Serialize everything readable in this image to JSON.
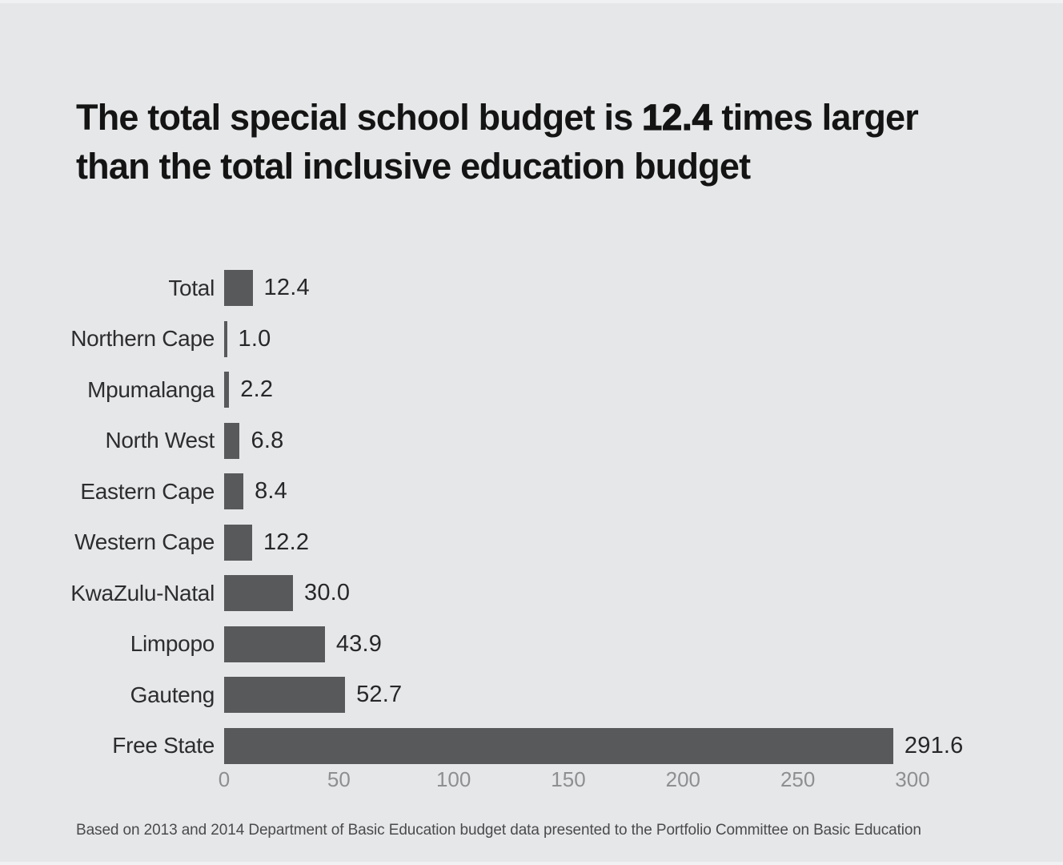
{
  "title": {
    "line1_prefix": "The total special school budget is ",
    "highlight": "12.4",
    "line1_suffix": " times larger",
    "line2": "than the total inclusive education budget"
  },
  "source_note": "Based on 2013 and 2014 Department of Basic Education budget data presented to the Portfolio Committee on Basic Education",
  "colors": {
    "background": "#e6e7e8",
    "bar": "#58595b",
    "title_text": "#141414",
    "tick_text": "#8d8f92"
  },
  "chart_data": {
    "type": "bar",
    "orientation": "horizontal",
    "title": "The total special school budget is 12.4 times larger than the total inclusive education budget",
    "categories": [
      "Total",
      "Northern Cape",
      "Mpumalanga",
      "North West",
      "Eastern Cape",
      "Western Cape",
      "KwaZulu-Natal",
      "Limpopo",
      "Gauteng",
      "Free State"
    ],
    "values": [
      12.4,
      1.0,
      2.2,
      6.8,
      8.4,
      12.2,
      30.0,
      43.9,
      52.7,
      291.6
    ],
    "value_labels": [
      "12.4",
      "1.0",
      "2.2",
      "6.8",
      "8.4",
      "12.2",
      "30.0",
      "43.9",
      "52.7",
      "291.6"
    ],
    "x_ticks": [
      0,
      50,
      100,
      150,
      200,
      250,
      300
    ],
    "xlim": [
      0,
      300
    ],
    "xlabel": "",
    "ylabel": "",
    "grid": false,
    "legend": false
  }
}
